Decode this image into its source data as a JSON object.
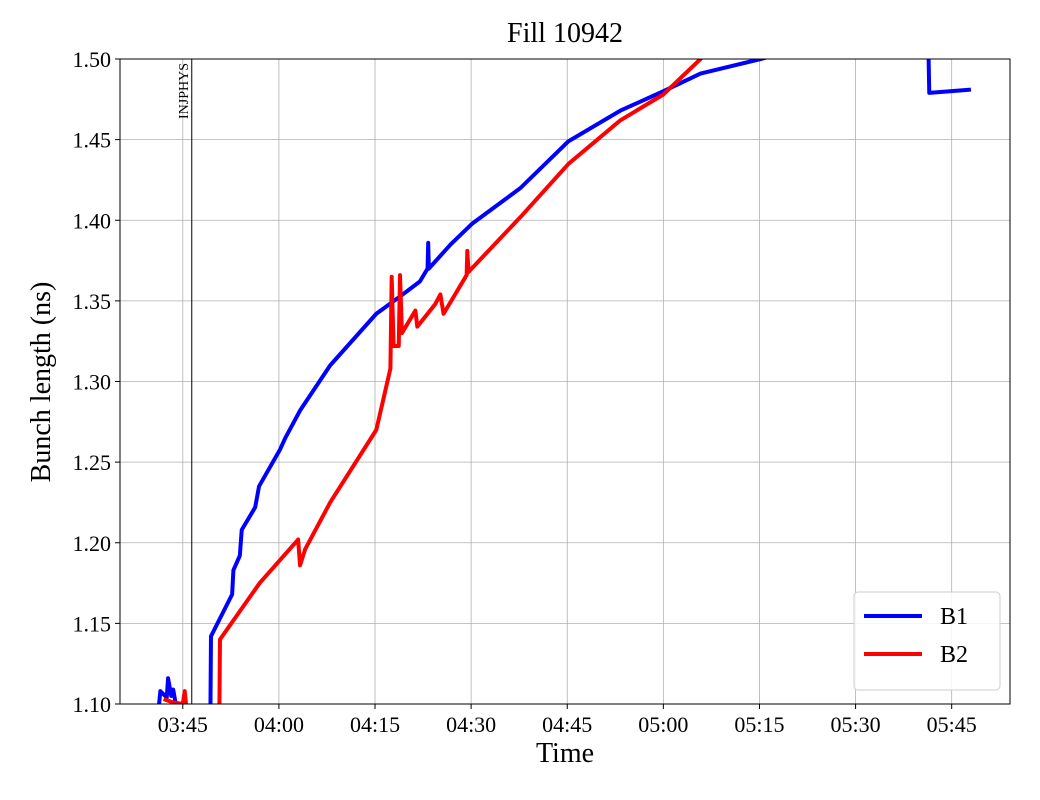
{
  "chart_data": {
    "type": "line",
    "title": "Fill 10942",
    "x_label": "Time",
    "y_label": "Bunch length (ns)",
    "xlim": [
      215.2,
      354.1
    ],
    "ylim": [
      1.1,
      1.5
    ],
    "xticks": [
      {
        "value": 225,
        "label": "03:45"
      },
      {
        "value": 240,
        "label": "04:00"
      },
      {
        "value": 255,
        "label": "04:15"
      },
      {
        "value": 270,
        "label": "04:30"
      },
      {
        "value": 285,
        "label": "04:45"
      },
      {
        "value": 300,
        "label": "05:00"
      },
      {
        "value": 315,
        "label": "05:15"
      },
      {
        "value": 330,
        "label": "05:30"
      },
      {
        "value": 345,
        "label": "05:45"
      }
    ],
    "yticks": [
      {
        "value": 1.1,
        "label": "1.10"
      },
      {
        "value": 1.15,
        "label": "1.15"
      },
      {
        "value": 1.2,
        "label": "1.20"
      },
      {
        "value": 1.25,
        "label": "1.25"
      },
      {
        "value": 1.3,
        "label": "1.30"
      },
      {
        "value": 1.35,
        "label": "1.35"
      },
      {
        "value": 1.4,
        "label": "1.40"
      },
      {
        "value": 1.45,
        "label": "1.45"
      },
      {
        "value": 1.5,
        "label": "1.50"
      }
    ],
    "grid": true,
    "legend": "lower right",
    "annotations": [
      {
        "text": "INJPHYS",
        "x": 226.4
      }
    ],
    "series": [
      {
        "name": "B1",
        "color": "#0000ff",
        "x": [
          221.3,
          221.5,
          222.5,
          222.7,
          223.2,
          223.5,
          223.9,
          null,
          229.3,
          229.4,
          232.7,
          232.9,
          233.9,
          234.2,
          236.3,
          236.9,
          240.2,
          241.0,
          243.3,
          248.0,
          255.2,
          259.0,
          262.0,
          263.2,
          263.3,
          263.4,
          266.8,
          270.2,
          277.7,
          285.2,
          293.3,
          300.0,
          305.8,
          315.2,
          320.0,
          null,
          341.3,
          341.5,
          348.0
        ],
        "values": [
          1.1,
          1.108,
          1.104,
          1.116,
          1.105,
          1.109,
          1.1,
          null,
          1.09,
          1.142,
          1.168,
          1.183,
          1.192,
          1.208,
          1.222,
          1.235,
          1.258,
          1.265,
          1.282,
          1.31,
          1.342,
          1.353,
          1.362,
          1.37,
          1.386,
          1.37,
          1.385,
          1.398,
          1.42,
          1.449,
          1.468,
          1.48,
          1.491,
          1.5,
          1.505,
          null,
          1.52,
          1.479,
          1.481
        ]
      },
      {
        "name": "B2",
        "color": "#ff0000",
        "x": [
          222.0,
          223.5,
          225.0,
          225.3,
          225.5,
          null,
          230.7,
          230.8,
          237.0,
          243.0,
          243.3,
          244.1,
          248.0,
          255.2,
          257.4,
          257.6,
          257.9,
          258.7,
          258.9,
          259.2,
          261.3,
          261.6,
          264.4,
          265.2,
          265.7,
          269.3,
          269.4,
          269.6,
          277.7,
          285.2,
          293.3,
          300.0,
          305.8,
          308.0
        ],
        "values": [
          1.103,
          1.101,
          1.1,
          1.108,
          1.1,
          null,
          1.09,
          1.14,
          1.175,
          1.202,
          1.186,
          1.196,
          1.225,
          1.27,
          1.308,
          1.365,
          1.322,
          1.322,
          1.366,
          1.33,
          1.344,
          1.334,
          1.348,
          1.354,
          1.342,
          1.366,
          1.381,
          1.368,
          1.402,
          1.435,
          1.462,
          1.478,
          1.5,
          1.51
        ]
      }
    ]
  }
}
